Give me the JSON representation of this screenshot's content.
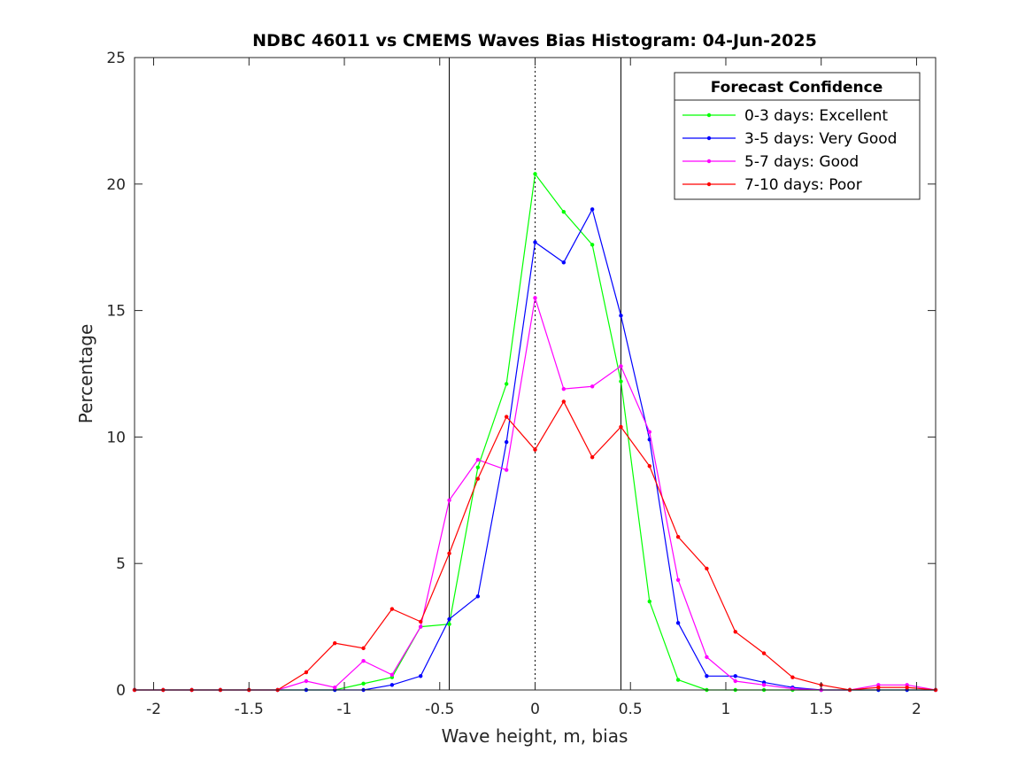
{
  "chart_data": {
    "type": "line",
    "title": "NDBC 46011 vs CMEMS Waves Bias Histogram: 04-Jun-2025",
    "xlabel": "Wave height, m, bias",
    "ylabel": "Percentage",
    "xlim": [
      -2.1,
      2.1
    ],
    "ylim": [
      0,
      25
    ],
    "xticks": [
      -2,
      -1.5,
      -1,
      -0.5,
      0,
      0.5,
      1,
      1.5,
      2
    ],
    "xtick_labels": [
      "-2",
      "-1.5",
      "-1",
      "-0.5",
      "0",
      "0.5",
      "1",
      "1.5",
      "2"
    ],
    "yticks": [
      0,
      5,
      10,
      15,
      20,
      25
    ],
    "ytick_labels": [
      "0",
      "5",
      "10",
      "15",
      "20",
      "25"
    ],
    "grid": false,
    "legend_title": "Forecast Confidence",
    "legend_position": "top-right",
    "reference_lines": [
      {
        "x": -0.45,
        "style": "solid"
      },
      {
        "x": 0,
        "style": "dotted"
      },
      {
        "x": 0.45,
        "style": "solid"
      }
    ],
    "x": [
      -2.1,
      -1.95,
      -1.8,
      -1.65,
      -1.5,
      -1.35,
      -1.2,
      -1.05,
      -0.9,
      -0.75,
      -0.6,
      -0.45,
      -0.3,
      -0.15,
      0,
      0.15,
      0.3,
      0.45,
      0.6,
      0.75,
      0.9,
      1.05,
      1.2,
      1.35,
      1.5,
      1.65,
      1.8,
      1.95,
      2.1
    ],
    "series": [
      {
        "name": "0-3 days: Excellent",
        "color": "#00ff00",
        "values": [
          0,
          0,
          0,
          0,
          0,
          0,
          0,
          0,
          0.25,
          0.5,
          2.5,
          2.6,
          8.8,
          12.1,
          20.4,
          18.9,
          17.6,
          12.2,
          3.5,
          0.4,
          0,
          0,
          0,
          0,
          0,
          0,
          0,
          0,
          0
        ]
      },
      {
        "name": "3-5 days: Very Good",
        "color": "#0000ff",
        "values": [
          0,
          0,
          0,
          0,
          0,
          0,
          0,
          0,
          0,
          0.2,
          0.55,
          2.8,
          3.7,
          9.8,
          17.7,
          16.9,
          19.0,
          14.8,
          9.9,
          2.65,
          0.55,
          0.55,
          0.3,
          0.1,
          0,
          0,
          0,
          0,
          0
        ]
      },
      {
        "name": "5-7 days: Good",
        "color": "#ff00ff",
        "values": [
          0,
          0,
          0,
          0,
          0,
          0,
          0.35,
          0.1,
          1.15,
          0.6,
          2.5,
          7.5,
          9.1,
          8.7,
          15.5,
          11.9,
          12.0,
          12.8,
          10.2,
          4.35,
          1.3,
          0.35,
          0.2,
          0.05,
          0,
          0,
          0.2,
          0.2,
          0
        ]
      },
      {
        "name": "7-10 days: Poor",
        "color": "#ff0000",
        "values": [
          0,
          0,
          0,
          0,
          0,
          0,
          0.7,
          1.85,
          1.65,
          3.2,
          2.7,
          5.4,
          8.35,
          10.8,
          9.5,
          11.4,
          9.2,
          10.4,
          8.85,
          6.05,
          4.8,
          2.3,
          1.45,
          0.5,
          0.2,
          0,
          0.1,
          0.1,
          0
        ]
      }
    ]
  }
}
